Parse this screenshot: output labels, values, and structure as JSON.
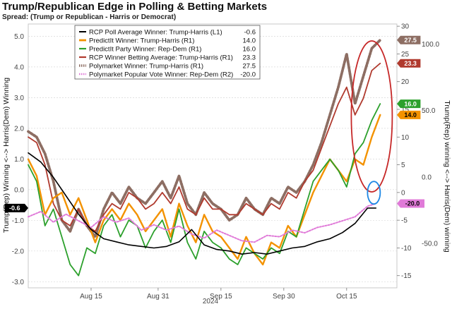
{
  "chart_data": {
    "type": "line",
    "title": "Trump/Republican Edge in Polling & Betting Markets",
    "subtitle": "Spread: (Trump or Republican - Harris or Democrat)",
    "xlabel": "2024",
    "ylabel_left": "Trump(Rep) Winning <--> Harris(Dem) Winning",
    "ylabel_right": "Trump(Rep) winning <--> Harris(Dem) winning",
    "x_ticks": [
      {
        "label": "Aug 15",
        "x": 15
      },
      {
        "label": "Aug 31",
        "x": 31
      },
      {
        "label": "Sep 15",
        "x": 46
      },
      {
        "label": "Sep 30",
        "x": 61
      },
      {
        "label": "Oct 15",
        "x": 76
      }
    ],
    "xlim": [
      0,
      88
    ],
    "ylim_left": [
      -3.2,
      5.4
    ],
    "ylim_r1": [
      -17.2,
      30.4
    ],
    "ylim_r2": [
      -83.4,
      115.0
    ],
    "left_ticks": [
      5.0,
      4.0,
      3.0,
      2.0,
      1.0,
      0.0,
      -1.0,
      -2.0,
      -3.0
    ],
    "r1_ticks": [
      30,
      25,
      20,
      15,
      10,
      5,
      0,
      -5,
      -10,
      -15
    ],
    "r2_ticks": [
      100.0,
      50.0,
      0.0,
      -50.0
    ],
    "series": [
      {
        "name": "RCP Poll Average Winner: Trump-Harris (L1)",
        "last": "-0.6",
        "color": "#000000",
        "axis": "L",
        "style": "solid",
        "width": 1.6,
        "x": [
          0,
          3,
          6,
          9,
          12,
          15,
          18,
          21,
          24,
          27,
          30,
          33,
          36,
          39,
          42,
          45,
          48,
          51,
          54,
          57,
          60,
          63,
          66,
          69,
          72,
          75,
          78,
          81,
          83
        ],
        "y": [
          1.2,
          0.9,
          0.4,
          -0.2,
          -0.8,
          -1.3,
          -1.6,
          -1.7,
          -1.8,
          -1.85,
          -1.9,
          -1.85,
          -1.7,
          -1.3,
          -1.8,
          -1.95,
          -2.0,
          -2.1,
          -2.05,
          -2.1,
          -2.0,
          -1.9,
          -1.85,
          -1.7,
          -1.6,
          -1.4,
          -1.1,
          -0.6,
          -0.6
        ]
      },
      {
        "name": "PredictIt Winner: Trump-Harris (R1)",
        "last": "14.0",
        "color": "#f39200",
        "axis": "R1",
        "style": "solid",
        "width": 2.4,
        "x": [
          0,
          2,
          4,
          6,
          8,
          10,
          12,
          14,
          16,
          18,
          20,
          22,
          24,
          26,
          28,
          30,
          32,
          34,
          36,
          38,
          40,
          42,
          44,
          46,
          48,
          50,
          52,
          54,
          56,
          58,
          60,
          62,
          64,
          66,
          68,
          70,
          72,
          74,
          76,
          78,
          80,
          82,
          84
        ],
        "y": [
          6,
          3,
          -4,
          -1,
          0,
          -4,
          -1,
          -5,
          -9,
          -5,
          -3,
          -5,
          -2,
          -4,
          -7,
          -5,
          -3,
          -8,
          -2,
          -6,
          -9,
          -4,
          -7,
          -8,
          -10,
          -12,
          -8,
          -11,
          -13,
          -9,
          -10,
          -6,
          -8,
          -4,
          0,
          3,
          6,
          4,
          2,
          6,
          5,
          10,
          14
        ]
      },
      {
        "name": "PredictIt Party Winner: Rep-Dem (R1)",
        "last": "16.0",
        "color": "#2ca02c",
        "axis": "R1",
        "style": "solid",
        "width": 1.8,
        "x": [
          0,
          2,
          4,
          6,
          8,
          10,
          12,
          14,
          16,
          18,
          20,
          22,
          24,
          26,
          28,
          30,
          32,
          34,
          36,
          38,
          40,
          42,
          44,
          46,
          48,
          50,
          52,
          54,
          56,
          58,
          60,
          62,
          64,
          66,
          68,
          70,
          72,
          74,
          76,
          78,
          80,
          82,
          84
        ],
        "y": [
          5,
          2,
          -6,
          -3,
          -8,
          -13,
          -15,
          -10,
          -11,
          -6,
          -4,
          -8,
          -5,
          -6,
          -10,
          -7,
          -5,
          -9,
          -3,
          -9,
          -12,
          -7,
          -9,
          -10,
          -12,
          -13,
          -10,
          -11,
          -12,
          -10,
          -11,
          -7,
          -8,
          -3,
          2,
          4,
          6,
          4,
          1,
          7,
          9,
          13,
          16
        ]
      },
      {
        "name": "RCP Winner Betting Average: Trump-Harris (R1)",
        "last": "23.3",
        "color": "#b03a2e",
        "axis": "R1",
        "style": "solid",
        "width": 1.8,
        "x": [
          0,
          2,
          4,
          6,
          8,
          10,
          12,
          14,
          16,
          18,
          20,
          22,
          24,
          26,
          28,
          30,
          32,
          34,
          36,
          38,
          40,
          42,
          44,
          46,
          48,
          50,
          52,
          54,
          56,
          58,
          60,
          62,
          64,
          66,
          68,
          70,
          72,
          74,
          76,
          78,
          80,
          82,
          84
        ],
        "y": [
          10,
          9,
          5,
          -2,
          -5,
          -6,
          -3,
          -6,
          -7,
          -4,
          -2,
          -3,
          0,
          -1,
          -3,
          -2,
          0,
          -2,
          1,
          -3,
          -4,
          -1,
          -3,
          -3,
          -4,
          -4,
          -2,
          -3,
          -4,
          -2,
          -3,
          0,
          -1,
          2,
          4,
          8,
          12,
          16,
          19,
          14,
          17,
          22,
          23.3
        ]
      },
      {
        "name": "Polymarket Winner: Trump-Harris (R1)",
        "last": "27.5",
        "color": "#8d6e63",
        "axis": "R1",
        "style": "dotted",
        "width": 3.8,
        "x": [
          0,
          2,
          4,
          6,
          8,
          10,
          12,
          14,
          16,
          18,
          20,
          22,
          24,
          26,
          28,
          30,
          32,
          34,
          36,
          38,
          40,
          42,
          44,
          46,
          48,
          50,
          52,
          54,
          56,
          58,
          60,
          62,
          64,
          66,
          68,
          70,
          72,
          74,
          76,
          78,
          80,
          82,
          84
        ],
        "y": [
          11,
          10,
          7,
          2,
          -5,
          -7,
          -3,
          -6,
          -8,
          -3,
          0,
          -2,
          1,
          -1,
          -2,
          0,
          2,
          -1,
          3,
          -2,
          -4,
          0,
          -2,
          -3,
          -5,
          -4,
          -1,
          -3,
          -4,
          -1,
          -2,
          1,
          0,
          2,
          5,
          9,
          14,
          19,
          25,
          16,
          21,
          26,
          27.5
        ]
      },
      {
        "name": "Polymarket Popular Vote Winner: Rep-Dem (R2)",
        "last": "-20.0",
        "color": "#e07ad8",
        "axis": "R2",
        "style": "dotted",
        "width": 2.0,
        "x": [
          0,
          3,
          6,
          9,
          12,
          15,
          18,
          21,
          24,
          27,
          30,
          33,
          36,
          39,
          42,
          45,
          48,
          51,
          54,
          57,
          60,
          63,
          66,
          69,
          72,
          75,
          78,
          81,
          83
        ],
        "y": [
          -30,
          -26,
          -34,
          -28,
          -33,
          -38,
          -30,
          -34,
          -31,
          -40,
          -36,
          -40,
          -37,
          -43,
          -46,
          -40,
          -44,
          -48,
          -49,
          -44,
          -45,
          -40,
          -42,
          -38,
          -36,
          -33,
          -30,
          -22,
          -20
        ]
      }
    ],
    "annotations": [
      "red ellipse around betting series, Oct 15 onwards",
      "blue ellipse around RCP Poll Average, latest point"
    ]
  }
}
